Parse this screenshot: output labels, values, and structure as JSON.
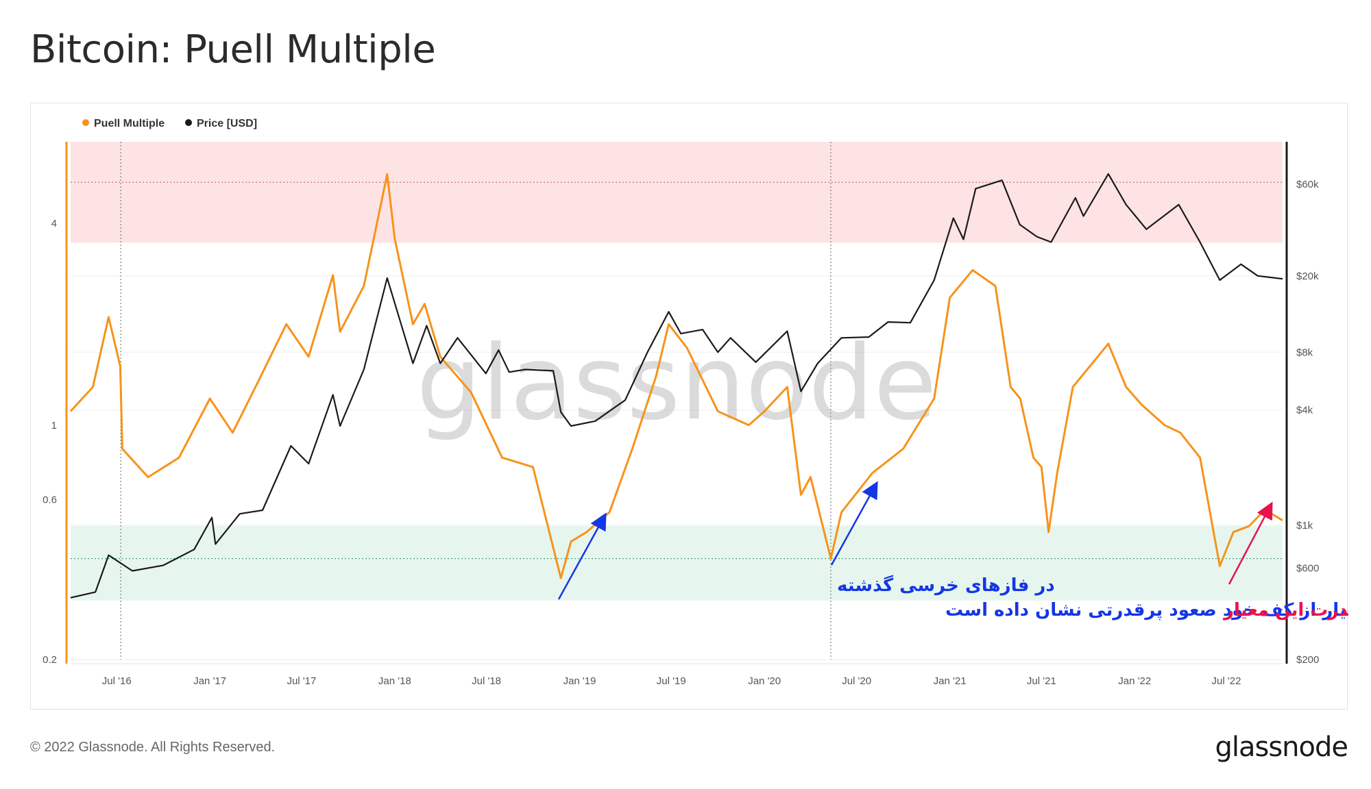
{
  "title": "Bitcoin: Puell Multiple",
  "footer": {
    "copyright": "© 2022 Glassnode. All Rights Reserved.",
    "logo": "glassnode"
  },
  "watermark": "glassnode",
  "colors": {
    "puell": "#f7931a",
    "price": "#1a1a1a",
    "red_band": "#fde3e3",
    "green_band": "#e6f6ee",
    "annot_blue": "#1436e6",
    "annot_red": "#e8124f",
    "axis_left": "#f7931a",
    "axis_right": "#1a1a1a"
  },
  "annotations": {
    "bear_line1": "در فازهای خرسی گذشته",
    "bear_line2": "این معیار از کف خود صعود پرقدرتی نشان داده است",
    "strength": "بازگشت قدرت این معیار"
  },
  "chart_data": {
    "type": "line",
    "title": "Bitcoin: Puell Multiple",
    "legend": [
      "Puell Multiple",
      "Price [USD]"
    ],
    "legend_position": "top-left",
    "grid": true,
    "x_ticks": [
      "Jul '16",
      "Jan '17",
      "Jul '17",
      "Jan '18",
      "Jul '18",
      "Jan '19",
      "Jul '19",
      "Jan '20",
      "Jul '20",
      "Jan '21",
      "Jul '21",
      "Jan '22",
      "Jul '22"
    ],
    "x_range": [
      "2016-04-01",
      "2022-10-20"
    ],
    "halving_dates": [
      "2016-07-09",
      "2020-05-11"
    ],
    "y_left": {
      "scale": "log",
      "range": [
        0.2,
        7
      ],
      "ticks": [
        0.2,
        0.6,
        1,
        4
      ]
    },
    "y_right": {
      "scale": "log",
      "range": [
        200,
        100000
      ],
      "ticks": [
        200,
        600,
        1000,
        4000,
        8000,
        20000,
        60000
      ],
      "tick_labels": [
        "$200",
        "$600",
        "$1k",
        "$4k",
        "$8k",
        "$20k",
        "$60k"
      ]
    },
    "bands": {
      "red": [
        3.5,
        7
      ],
      "green": [
        0.3,
        0.5
      ]
    },
    "reference_lines": [
      5.3,
      0.4
    ],
    "series": [
      {
        "name": "Puell Multiple",
        "axis": "left",
        "x": [
          "2016-04-01",
          "2016-05-15",
          "2016-06-15",
          "2016-07-08",
          "2016-07-12",
          "2016-09-01",
          "2016-11-01",
          "2017-01-01",
          "2017-02-15",
          "2017-04-01",
          "2017-06-01",
          "2017-07-15",
          "2017-09-01",
          "2017-09-15",
          "2017-11-01",
          "2017-12-17",
          "2018-01-01",
          "2018-02-06",
          "2018-03-01",
          "2018-04-01",
          "2018-06-01",
          "2018-08-01",
          "2018-10-01",
          "2018-11-25",
          "2018-12-15",
          "2019-01-15",
          "2019-03-01",
          "2019-04-15",
          "2019-06-01",
          "2019-06-26",
          "2019-08-01",
          "2019-10-01",
          "2019-12-01",
          "2020-01-01",
          "2020-02-15",
          "2020-03-13",
          "2020-04-01",
          "2020-05-11",
          "2020-06-01",
          "2020-08-01",
          "2020-10-01",
          "2020-12-01",
          "2021-01-01",
          "2021-02-15",
          "2021-04-01",
          "2021-05-01",
          "2021-05-20",
          "2021-06-15",
          "2021-07-01",
          "2021-07-15",
          "2021-08-01",
          "2021-09-01",
          "2021-10-20",
          "2021-11-10",
          "2021-12-15",
          "2022-01-15",
          "2022-03-01",
          "2022-04-01",
          "2022-05-10",
          "2022-06-18",
          "2022-07-15",
          "2022-08-15",
          "2022-09-15",
          "2022-10-20"
        ],
        "y": [
          1.1,
          1.3,
          2.1,
          1.5,
          0.85,
          0.7,
          0.8,
          1.2,
          0.95,
          1.3,
          2.0,
          1.6,
          2.8,
          1.9,
          2.6,
          5.6,
          3.6,
          2.0,
          2.3,
          1.6,
          1.25,
          0.8,
          0.75,
          0.35,
          0.45,
          0.48,
          0.55,
          0.85,
          1.4,
          2.0,
          1.7,
          1.1,
          1.0,
          1.1,
          1.3,
          0.62,
          0.7,
          0.4,
          0.55,
          0.72,
          0.85,
          1.2,
          2.4,
          2.9,
          2.6,
          1.3,
          1.2,
          0.8,
          0.75,
          0.48,
          0.72,
          1.3,
          1.6,
          1.75,
          1.3,
          1.15,
          1.0,
          0.95,
          0.8,
          0.38,
          0.48,
          0.5,
          0.56,
          0.52
        ]
      },
      {
        "name": "Price [USD]",
        "axis": "right",
        "x": [
          "2016-04-01",
          "2016-05-20",
          "2016-06-15",
          "2016-08-01",
          "2016-10-01",
          "2016-12-01",
          "2017-01-05",
          "2017-01-12",
          "2017-03-01",
          "2017-04-15",
          "2017-06-10",
          "2017-07-15",
          "2017-09-01",
          "2017-09-15",
          "2017-11-01",
          "2017-12-17",
          "2018-02-06",
          "2018-03-05",
          "2018-04-01",
          "2018-05-05",
          "2018-06-30",
          "2018-07-25",
          "2018-08-15",
          "2018-09-15",
          "2018-11-10",
          "2018-11-25",
          "2018-12-15",
          "2019-02-01",
          "2019-04-01",
          "2019-05-15",
          "2019-06-26",
          "2019-07-20",
          "2019-09-01",
          "2019-10-01",
          "2019-10-26",
          "2019-12-15",
          "2020-02-15",
          "2020-03-13",
          "2020-04-15",
          "2020-06-01",
          "2020-07-25",
          "2020-09-01",
          "2020-10-15",
          "2020-12-01",
          "2021-01-08",
          "2021-01-28",
          "2021-02-21",
          "2021-04-14",
          "2021-05-19",
          "2021-06-22",
          "2021-07-20",
          "2021-09-06",
          "2021-09-22",
          "2021-11-10",
          "2021-12-15",
          "2022-01-24",
          "2022-03-29",
          "2022-05-10",
          "2022-06-18",
          "2022-07-30",
          "2022-09-01",
          "2022-10-20"
        ],
        "y": [
          420,
          450,
          700,
          580,
          620,
          750,
          1100,
          800,
          1150,
          1200,
          2600,
          2100,
          4800,
          3300,
          6500,
          19500,
          7000,
          11000,
          7000,
          9500,
          6200,
          8200,
          6300,
          6500,
          6400,
          3900,
          3300,
          3500,
          4500,
          8000,
          13000,
          10000,
          10500,
          8000,
          9500,
          7100,
          10300,
          5000,
          7000,
          9500,
          9600,
          11500,
          11400,
          19000,
          40000,
          31000,
          57000,
          63000,
          37000,
          32000,
          30000,
          51000,
          41000,
          68000,
          47000,
          35000,
          47000,
          30000,
          19000,
          23000,
          20000,
          19300
        ]
      }
    ]
  }
}
